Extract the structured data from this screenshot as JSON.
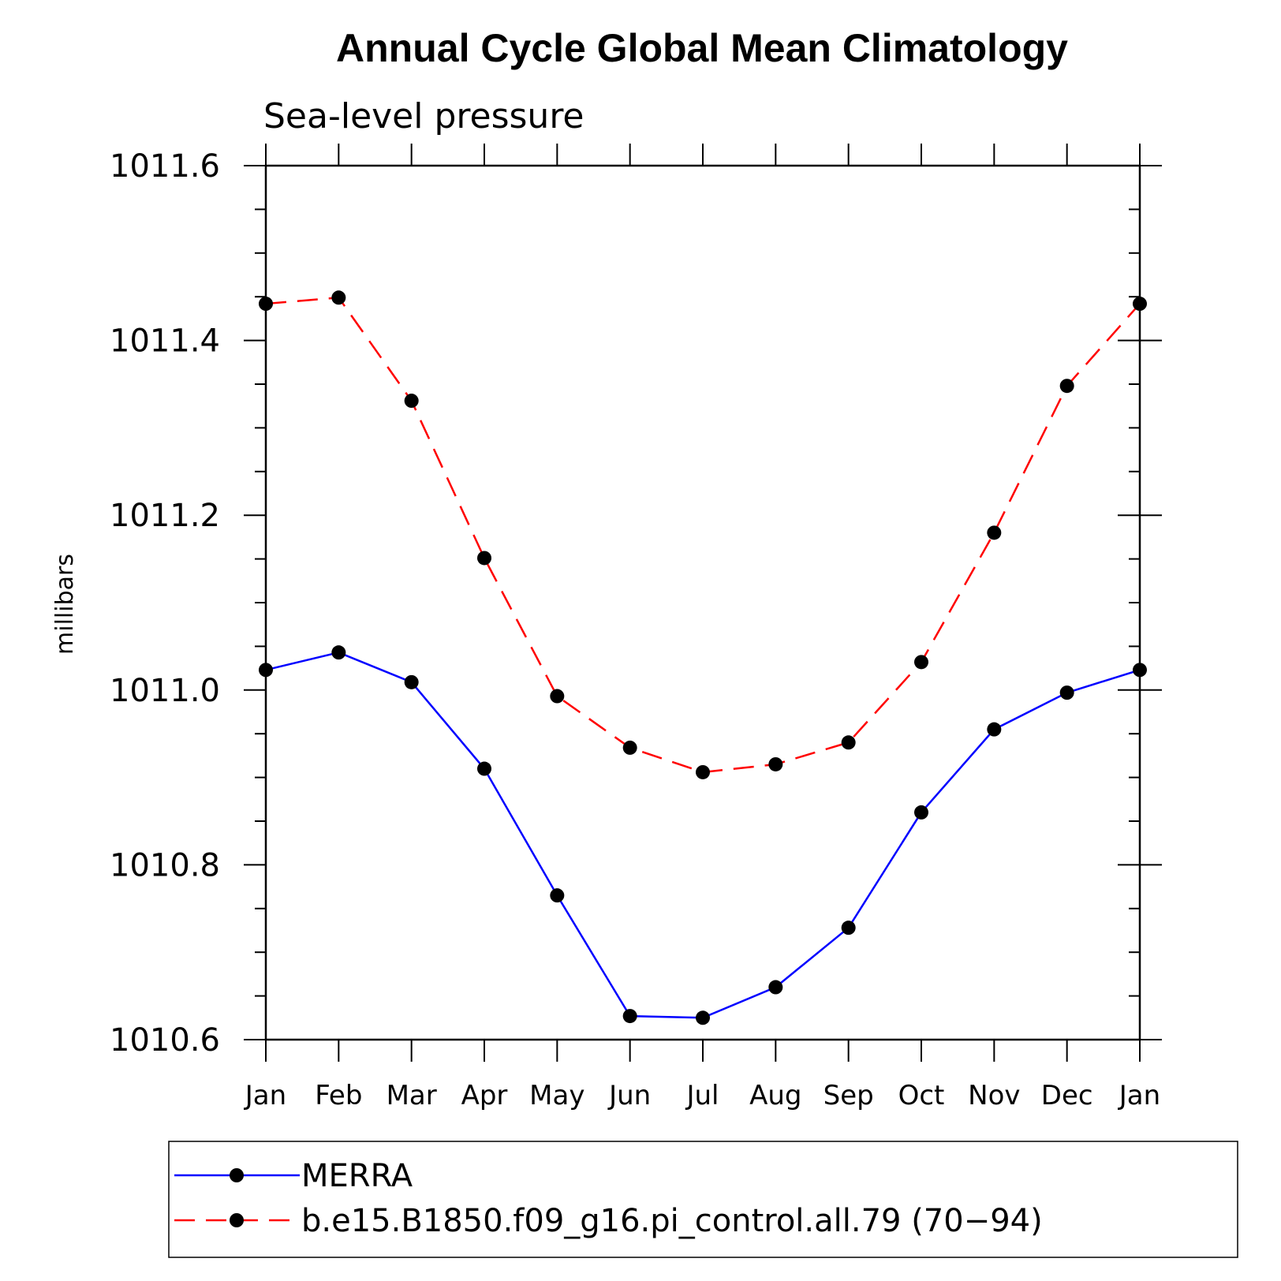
{
  "chart_data": {
    "type": "line",
    "title": "Annual Cycle Global Mean Climatology",
    "subtitle": "Sea-level pressure",
    "xlabel": "",
    "ylabel": "millibars",
    "categories": [
      "Jan",
      "Feb",
      "Mar",
      "Apr",
      "May",
      "Jun",
      "Jul",
      "Aug",
      "Sep",
      "Oct",
      "Nov",
      "Dec",
      "Jan"
    ],
    "ylim": [
      1010.6,
      1011.6
    ],
    "yticks": [
      "1010.6",
      "1010.8",
      "1011.0",
      "1011.2",
      "1011.4",
      "1011.6"
    ],
    "grid": false,
    "legend_position": "bottom",
    "series": [
      {
        "name": "MERRA",
        "color": "#0000ff",
        "line_style": "solid",
        "marker": "filled-circle",
        "values": [
          1011.023,
          1011.043,
          1011.009,
          1010.91,
          1010.765,
          1010.627,
          1010.625,
          1010.66,
          1010.728,
          1010.86,
          1010.955,
          1010.997,
          1011.023
        ]
      },
      {
        "name": "b.e15.B1850.f09_g16.pi_control.all.79 (70−94)",
        "color": "#ff0000",
        "line_style": "dashed",
        "marker": "filled-circle",
        "values": [
          1011.442,
          1011.449,
          1011.331,
          1011.151,
          1010.993,
          1010.934,
          1010.906,
          1010.915,
          1010.94,
          1011.032,
          1011.18,
          1011.348,
          1011.442
        ]
      }
    ]
  }
}
